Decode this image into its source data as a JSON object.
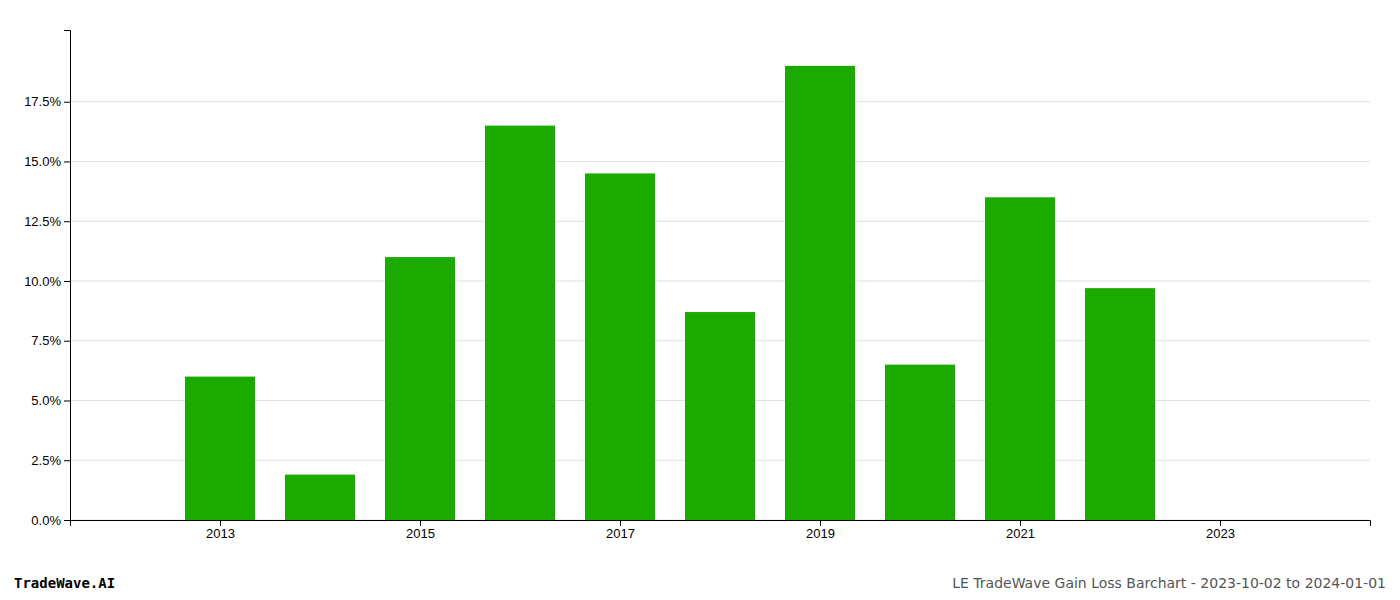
{
  "chart_data": {
    "type": "bar",
    "x": [
      2013,
      2014,
      2015,
      2016,
      2017,
      2018,
      2019,
      2020,
      2021,
      2022
    ],
    "values": [
      0.06,
      0.019,
      0.11,
      0.165,
      0.145,
      0.087,
      0.19,
      0.065,
      0.135,
      0.097
    ],
    "color": "#1aaa00",
    "xlim": [
      2011.5,
      2024.5
    ],
    "xticks": [
      2013,
      2015,
      2017,
      2019,
      2021,
      2023
    ],
    "ylim": [
      0,
      0.205
    ],
    "yticks": [
      {
        "value": 0.0,
        "label": "0.0%"
      },
      {
        "value": 0.025,
        "label": "2.5%"
      },
      {
        "value": 0.05,
        "label": "5.0%"
      },
      {
        "value": 0.075,
        "label": "7.5%"
      },
      {
        "value": 0.1,
        "label": "10.0%"
      },
      {
        "value": 0.125,
        "label": "12.5%"
      },
      {
        "value": 0.15,
        "label": "15.0%"
      },
      {
        "value": 0.175,
        "label": "17.5%"
      }
    ],
    "grid": true,
    "annotations": [
      "TradeWave.AI",
      "LE TradeWave Gain Loss Barchart - 2023-10-02 to 2024-01-01"
    ]
  }
}
